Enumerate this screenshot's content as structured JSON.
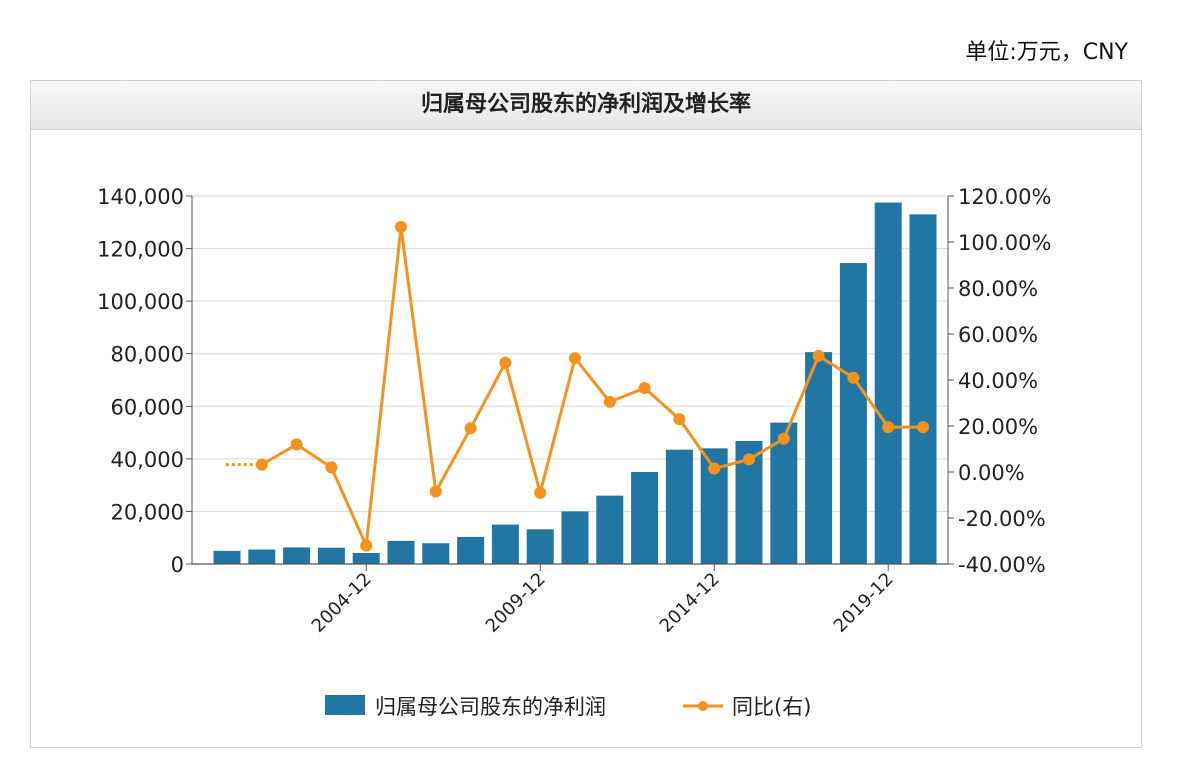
{
  "unit_label": "单位:万元，CNY",
  "colors": {
    "bar": "#2176a3",
    "line": "#f5921e",
    "grid": "#d9d9d9",
    "axis": "#555555"
  },
  "chart_data": {
    "type": "bar",
    "title": "归属母公司股东的净利润及增长率",
    "categories": [
      "2000-12",
      "2001-12",
      "2002-12",
      "2003-12",
      "2004-12",
      "2005-12",
      "2006-12",
      "2007-12",
      "2008-12",
      "2009-12",
      "2010-12",
      "2011-12",
      "2012-12",
      "2013-12",
      "2014-12",
      "2015-12",
      "2016-12",
      "2017-12",
      "2018-12",
      "2019-12",
      "2020-12"
    ],
    "x_tick_labels": [
      "2004-12",
      "2009-12",
      "2014-12",
      "2019-12"
    ],
    "series": [
      {
        "name": "归属母公司股东的净利润",
        "type": "bar",
        "axis": "left",
        "values": [
          5000,
          5500,
          6300,
          6200,
          4200,
          8800,
          7900,
          10300,
          15000,
          13200,
          20000,
          26000,
          35000,
          43500,
          44000,
          46800,
          53800,
          80600,
          114500,
          137500,
          133000
        ]
      },
      {
        "name": "同比(右)",
        "type": "line",
        "axis": "right",
        "values": [
          null,
          3.2,
          12,
          2,
          -32,
          106.5,
          -8.5,
          19,
          47.5,
          -9,
          49.5,
          30.5,
          36.5,
          23,
          1.5,
          5.5,
          14.5,
          50.5,
          41,
          19.5,
          19.5
        ],
        "dotted_lead_in": 3.2
      }
    ],
    "y_left": {
      "ylim": [
        0,
        140000
      ],
      "ticks": [
        "0",
        "20,000",
        "40,000",
        "60,000",
        "80,000",
        "100,000",
        "120,000",
        "140,000"
      ]
    },
    "y_right": {
      "ylim": [
        -40,
        120
      ],
      "ticks": [
        "-40.00%",
        "-20.00%",
        "0.00%",
        "20.00%",
        "40.00%",
        "60.00%",
        "80.00%",
        "100.00%",
        "120.00%"
      ]
    },
    "legend": {
      "placement": "bottom",
      "items": [
        "归属母公司股东的净利润",
        "同比(右)"
      ]
    },
    "grid": true
  }
}
